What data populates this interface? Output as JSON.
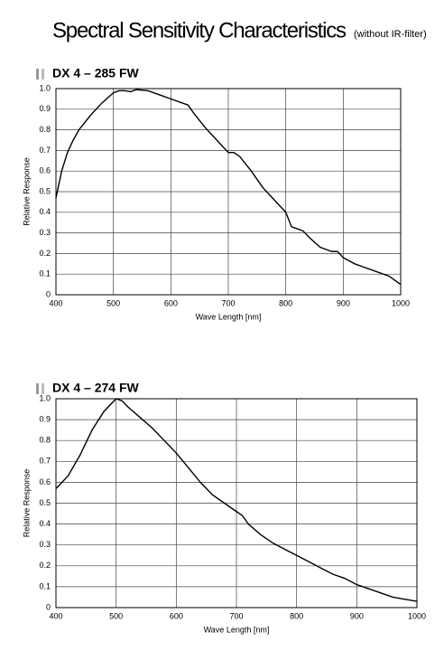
{
  "title": "Spectral Sensitivity Characteristics",
  "subtitle": "(without IR-filter)",
  "chart_data": [
    {
      "type": "line",
      "title": "DX 4 – 285 FW",
      "x_label": "Wave Length [nm]",
      "y_label": "Relative Response",
      "x": [
        400,
        410,
        420,
        430,
        440,
        460,
        480,
        500,
        510,
        520,
        530,
        540,
        560,
        580,
        600,
        620,
        630,
        640,
        660,
        680,
        700,
        710,
        720,
        740,
        760,
        780,
        800,
        810,
        820,
        830,
        840,
        860,
        880,
        890,
        900,
        920,
        940,
        960,
        980,
        990,
        1000
      ],
      "series": [
        {
          "color": "#000000",
          "values": [
            0.47,
            0.6,
            0.69,
            0.75,
            0.8,
            0.87,
            0.93,
            0.98,
            0.99,
            0.99,
            0.985,
            0.995,
            0.99,
            0.97,
            0.95,
            0.93,
            0.92,
            0.88,
            0.81,
            0.75,
            0.69,
            0.69,
            0.67,
            0.6,
            0.52,
            0.46,
            0.4,
            0.33,
            0.32,
            0.31,
            0.28,
            0.23,
            0.21,
            0.21,
            0.18,
            0.15,
            0.13,
            0.11,
            0.09,
            0.07,
            0.05
          ]
        }
      ],
      "xlim": [
        400,
        1000
      ],
      "xticks": [
        400,
        500,
        600,
        700,
        800,
        900,
        1000
      ],
      "ylim": [
        0,
        1
      ],
      "yticks": [
        0,
        0.1,
        0.2,
        0.3,
        0.4,
        0.5,
        0.6,
        0.7,
        0.8,
        0.9,
        {
          "value": 1,
          "label": "1.0"
        }
      ],
      "grid": true
    },
    {
      "type": "line",
      "title": "DX 4 – 274 FW",
      "x_label": "Wave Length [nm]",
      "y_label": "Relative Response",
      "x": [
        400,
        420,
        440,
        460,
        480,
        500,
        510,
        520,
        540,
        560,
        580,
        600,
        620,
        640,
        660,
        680,
        690,
        700,
        710,
        720,
        740,
        760,
        780,
        800,
        820,
        840,
        860,
        880,
        900,
        920,
        940,
        960,
        980,
        1000
      ],
      "series": [
        {
          "color": "#000000",
          "values": [
            0.57,
            0.63,
            0.73,
            0.85,
            0.94,
            1.0,
            0.99,
            0.96,
            0.91,
            0.86,
            0.8,
            0.74,
            0.67,
            0.6,
            0.54,
            0.5,
            0.48,
            0.46,
            0.44,
            0.4,
            0.35,
            0.31,
            0.28,
            0.25,
            0.22,
            0.19,
            0.16,
            0.14,
            0.11,
            0.09,
            0.07,
            0.05,
            0.04,
            0.03
          ]
        }
      ],
      "xlim": [
        400,
        1000
      ],
      "xticks": [
        400,
        500,
        600,
        700,
        800,
        900,
        1000
      ],
      "ylim": [
        0,
        1
      ],
      "yticks": [
        0,
        0.1,
        0.2,
        0.3,
        0.4,
        0.5,
        0.6,
        0.7,
        0.8,
        0.9,
        {
          "value": 1,
          "label": "1.0"
        }
      ],
      "grid": true
    }
  ]
}
